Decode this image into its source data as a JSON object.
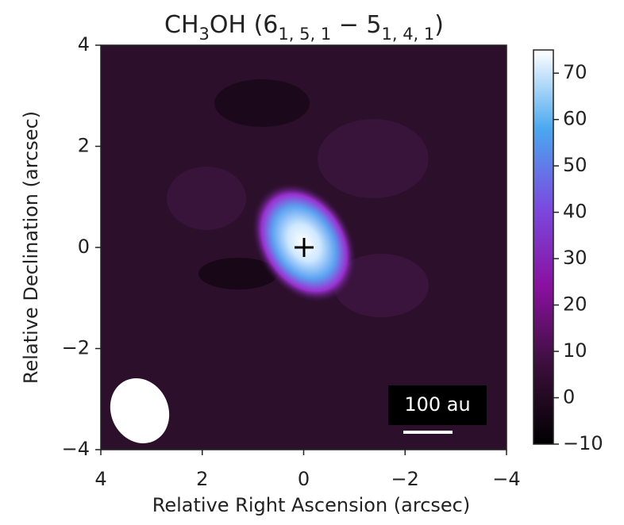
{
  "chart_data": {
    "type": "image",
    "title_parts": [
      "CH",
      "3",
      "OH (6",
      "1, 5, 1",
      " − 5",
      "1, 4, 1",
      ")"
    ],
    "xlabel": "Relative Right Ascension (arcsec)",
    "ylabel": "Relative Declination (arcsec)",
    "xlim": [
      4,
      -4
    ],
    "ylim": [
      -4,
      4
    ],
    "xticks": [
      4,
      2,
      0,
      {
        "value": -2,
        "label": "−2"
      },
      {
        "value": -4,
        "label": "−4"
      }
    ],
    "yticks": [
      4,
      2,
      0,
      {
        "value": -2,
        "label": "−2"
      },
      {
        "value": -4,
        "label": "−4"
      }
    ],
    "clim": [
      -10,
      75
    ],
    "cticks": [
      {
        "value": -10,
        "label": "−10"
      },
      0,
      10,
      20,
      30,
      40,
      50,
      60,
      70
    ],
    "colormap": [
      "#000000",
      "#3a0f3a",
      "#8a10a0",
      "#7a4ae0",
      "#4aa8f0",
      "#ffffff"
    ],
    "scale_bar_label": "100 au"
  }
}
